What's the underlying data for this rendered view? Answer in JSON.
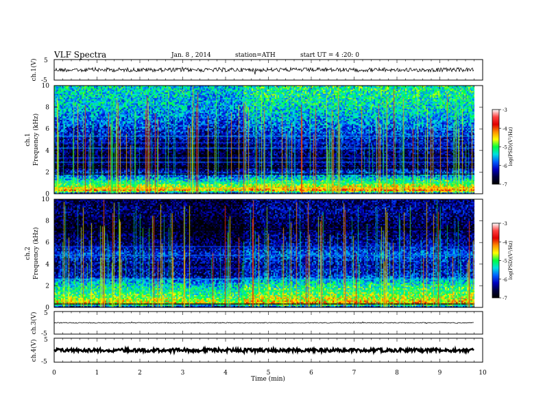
{
  "header": {
    "title": "VLF Spectra",
    "date": "Jan. 8 , 2014",
    "station": "station=ATH",
    "start_ut": "start UT = 4 :20: 0"
  },
  "colorbar": {
    "label": "log(PSD)(V²/Hz)",
    "ticks": [
      "-3",
      "-4",
      "-5",
      "-6",
      "-7"
    ],
    "colors": [
      "#ffffff",
      "#ff4040",
      "#e00000",
      "#ff9000",
      "#ffff00",
      "#00ff40",
      "#00e0e0",
      "#0060ff",
      "#0000c0",
      "#000040",
      "#000000"
    ]
  },
  "chart_data": [
    {
      "type": "line",
      "panel": "ch1-waveform",
      "ylabel": "ch.1(V)",
      "yticks": [
        "5",
        "-5"
      ],
      "ylim": [
        -5,
        5
      ],
      "xlim": [
        0,
        10
      ],
      "trace_level": 0,
      "trace_noise_amplitude": 0.5,
      "trace_end_min": 9.8
    },
    {
      "type": "heatmap",
      "panel": "ch1-spectrogram",
      "ylabel_top": "ch.1",
      "ylabel": "Frequency (kHz)",
      "yticks": [
        "10",
        "8",
        "6",
        "4",
        "2",
        "0"
      ],
      "ylim": [
        0,
        10
      ],
      "xlim": [
        0,
        10
      ],
      "zlim": [
        -7,
        -3
      ],
      "data_end_min": 9.8,
      "segment_breaks_min": [
        3.1,
        4.4
      ],
      "background_profile": [
        {
          "f": 0.0,
          "z": -6.9
        },
        {
          "f": 0.35,
          "z": -4.2
        },
        {
          "f": 0.8,
          "z": -4.8
        },
        {
          "f": 1.5,
          "z": -5.6
        },
        {
          "f": 2.5,
          "z": -6.6
        },
        {
          "f": 3.5,
          "z": -6.7
        },
        {
          "f": 5.0,
          "z": -6.3
        },
        {
          "f": 6.3,
          "z": -5.9
        },
        {
          "f": 8.0,
          "z": -5.5
        },
        {
          "f": 10.0,
          "z": -5.3
        }
      ],
      "lines": [
        {
          "f": 0.5,
          "z": -4.4
        },
        {
          "f": 1.0,
          "z": -5.2
        },
        {
          "f": 1.8,
          "z": -6.9
        },
        {
          "f": 2.4,
          "z": -6.9
        },
        {
          "f": 2.9,
          "z": -5.9
        },
        {
          "f": 3.3,
          "z": -6.0
        },
        {
          "f": 4.2,
          "z": -5.8
        },
        {
          "f": 4.7,
          "z": -6.0
        },
        {
          "f": 5.3,
          "z": -5.7
        }
      ]
    },
    {
      "type": "heatmap",
      "panel": "ch2-spectrogram",
      "ylabel_top": "ch.2",
      "ylabel": "Frequency (kHz)",
      "yticks": [
        "10",
        "8",
        "6",
        "4",
        "2",
        "0"
      ],
      "ylim": [
        0,
        10
      ],
      "xlim": [
        0,
        10
      ],
      "zlim": [
        -7,
        -3
      ],
      "data_end_min": 9.8,
      "segment_breaks_min": [
        3.1,
        4.4
      ],
      "background_profile": [
        {
          "f": 0.0,
          "z": -6.9
        },
        {
          "f": 0.4,
          "z": -4.4
        },
        {
          "f": 1.2,
          "z": -5.0
        },
        {
          "f": 2.2,
          "z": -5.4
        },
        {
          "f": 3.0,
          "z": -6.2
        },
        {
          "f": 4.0,
          "z": -6.4
        },
        {
          "f": 5.0,
          "z": -6.0
        },
        {
          "f": 6.0,
          "z": -6.5
        },
        {
          "f": 7.5,
          "z": -6.8
        },
        {
          "f": 9.0,
          "z": -6.5
        },
        {
          "f": 10.0,
          "z": -6.6
        }
      ],
      "lines": [
        {
          "f": 0.3,
          "z": -6.9
        },
        {
          "f": 1.5,
          "z": -5.2
        },
        {
          "f": 2.6,
          "z": -5.5
        },
        {
          "f": 3.6,
          "z": -6.1
        },
        {
          "f": 4.8,
          "z": -5.8
        },
        {
          "f": 5.6,
          "z": -6.0
        },
        {
          "f": 7.2,
          "z": -6.9
        }
      ]
    },
    {
      "type": "line",
      "panel": "ch3-waveform",
      "ylabel": "ch.3(V)",
      "yticks": [
        "5",
        "-5"
      ],
      "ylim": [
        -5,
        5
      ],
      "xlim": [
        0,
        10
      ],
      "trace_level": 0,
      "trace_noise_amplitude": 0.1,
      "trace_end_min": 9.8
    },
    {
      "type": "line",
      "panel": "ch4-waveform",
      "ylabel": "ch.4(V)",
      "yticks": [
        "5",
        "-5"
      ],
      "ylim": [
        -5,
        5
      ],
      "xlim": [
        0,
        10
      ],
      "trace_level": 0,
      "trace_noise_amplitude": 0.35,
      "trace_end_min": 9.8
    }
  ],
  "xaxis": {
    "label": "Time (min)",
    "ticks": [
      "0",
      "1",
      "2",
      "3",
      "4",
      "5",
      "6",
      "7",
      "8",
      "9",
      "10"
    ],
    "xlim": [
      0,
      10
    ]
  }
}
